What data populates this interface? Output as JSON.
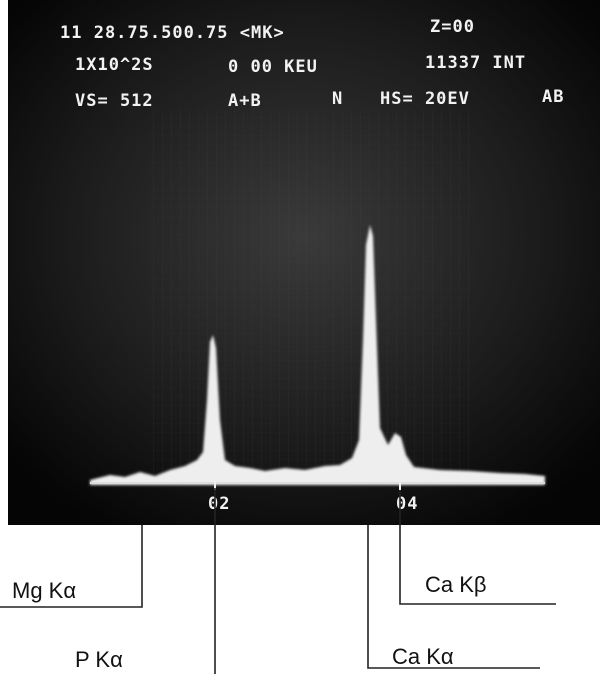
{
  "screen": {
    "header": [
      [
        "11 28.75.500.75 <MK>",
        "Z=00"
      ],
      [
        "1X10^2S",
        "0 00 KEU",
        "11337 INT"
      ],
      [
        "VS= 512",
        "A+B",
        "N",
        "HS= 20EV",
        "AB"
      ]
    ],
    "axis_labels": [
      "02",
      "04"
    ]
  },
  "peak_labels": [
    "Mg Kα",
    "P Kα",
    "Ca Kβ",
    "Ca Kα"
  ]
}
